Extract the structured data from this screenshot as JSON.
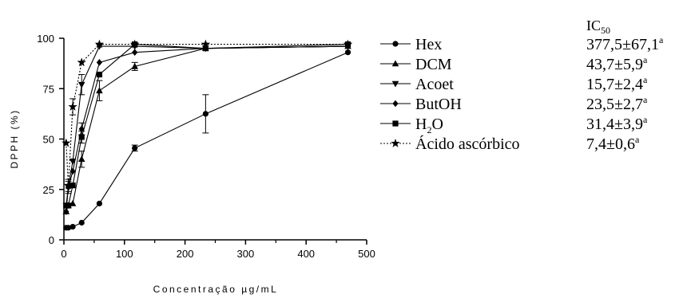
{
  "chart_data": {
    "type": "line",
    "xlabel": "Concentração µg/mL",
    "ylabel": "DPPH (%)",
    "xlim": [
      0,
      500
    ],
    "ylim": [
      0,
      100
    ],
    "xticks": [
      "0",
      "100",
      "200",
      "300",
      "400",
      "500"
    ],
    "yticks": [
      "0",
      "25",
      "50",
      "75",
      "100"
    ],
    "grid": false,
    "legend_position": "right",
    "ic50_header": "IC",
    "ic50_header_sub": "50",
    "series": [
      {
        "name": "Hex",
        "marker": "circle",
        "dash": false,
        "ic50": "377,5±67,1",
        "ic50_sup": "a",
        "points": [
          [
            3.7,
            6
          ],
          [
            7.3,
            6
          ],
          [
            14.6,
            6.5
          ],
          [
            29.3,
            8.5
          ],
          [
            58.6,
            18
          ],
          [
            117,
            45.5
          ],
          [
            234,
            62.5
          ],
          [
            469,
            93
          ]
        ],
        "errors": [
          0,
          0,
          0,
          0,
          0,
          1.5,
          9.5,
          0
        ]
      },
      {
        "name": "DCM",
        "marker": "triangle-up",
        "dash": false,
        "ic50": "43,7±5,9",
        "ic50_sup": "a",
        "points": [
          [
            3.7,
            14
          ],
          [
            7.3,
            17
          ],
          [
            14.6,
            18
          ],
          [
            29.3,
            40
          ],
          [
            58.6,
            74
          ],
          [
            117,
            86
          ],
          [
            234,
            95
          ],
          [
            469,
            96
          ]
        ],
        "errors": [
          0,
          0,
          0,
          4,
          5,
          2,
          0,
          0
        ]
      },
      {
        "name": "Acoet",
        "marker": "triangle-down",
        "dash": false,
        "ic50": "15,7±2,4",
        "ic50_sup": "a",
        "points": [
          [
            3.7,
            17
          ],
          [
            7.3,
            26
          ],
          [
            14.6,
            39
          ],
          [
            29.3,
            77
          ],
          [
            58.6,
            96
          ],
          [
            117,
            96
          ],
          [
            234,
            95
          ],
          [
            469,
            96
          ]
        ],
        "errors": [
          0,
          3,
          0,
          5,
          0,
          0,
          0,
          0
        ]
      },
      {
        "name": "ButOH",
        "marker": "diamond",
        "dash": false,
        "ic50": "23,5±2,7",
        "ic50_sup": "a",
        "points": [
          [
            3.7,
            14
          ],
          [
            7.3,
            26
          ],
          [
            14.6,
            34
          ],
          [
            29.3,
            55
          ],
          [
            58.6,
            88
          ],
          [
            117,
            93
          ],
          [
            234,
            95
          ],
          [
            469,
            96
          ]
        ],
        "errors": [
          0,
          0,
          0,
          3,
          0,
          0,
          0,
          0
        ]
      },
      {
        "name": "H",
        "name_sub": "2",
        "name_after": "O",
        "marker": "square",
        "dash": false,
        "ic50": "31,4±3,9",
        "ic50_sup": "a",
        "points": [
          [
            3.7,
            17
          ],
          [
            7.3,
            17
          ],
          [
            14.6,
            27
          ],
          [
            29.3,
            51
          ],
          [
            58.6,
            82
          ],
          [
            117,
            97
          ],
          [
            234,
            95
          ],
          [
            469,
            97
          ]
        ],
        "errors": [
          0,
          0,
          0,
          3,
          0,
          0,
          0,
          0
        ]
      },
      {
        "name": "Ácido ascórbico",
        "marker": "star",
        "dash": true,
        "ic50": "7,4±0,6",
        "ic50_sup": "a",
        "points": [
          [
            3.7,
            48
          ],
          [
            7.3,
            27
          ],
          [
            14.6,
            66
          ],
          [
            29.3,
            88
          ],
          [
            58.6,
            97
          ],
          [
            117,
            97
          ],
          [
            234,
            97
          ],
          [
            469,
            97
          ]
        ],
        "errors": [
          0,
          3,
          4,
          0,
          0,
          0,
          0,
          0
        ]
      }
    ]
  }
}
